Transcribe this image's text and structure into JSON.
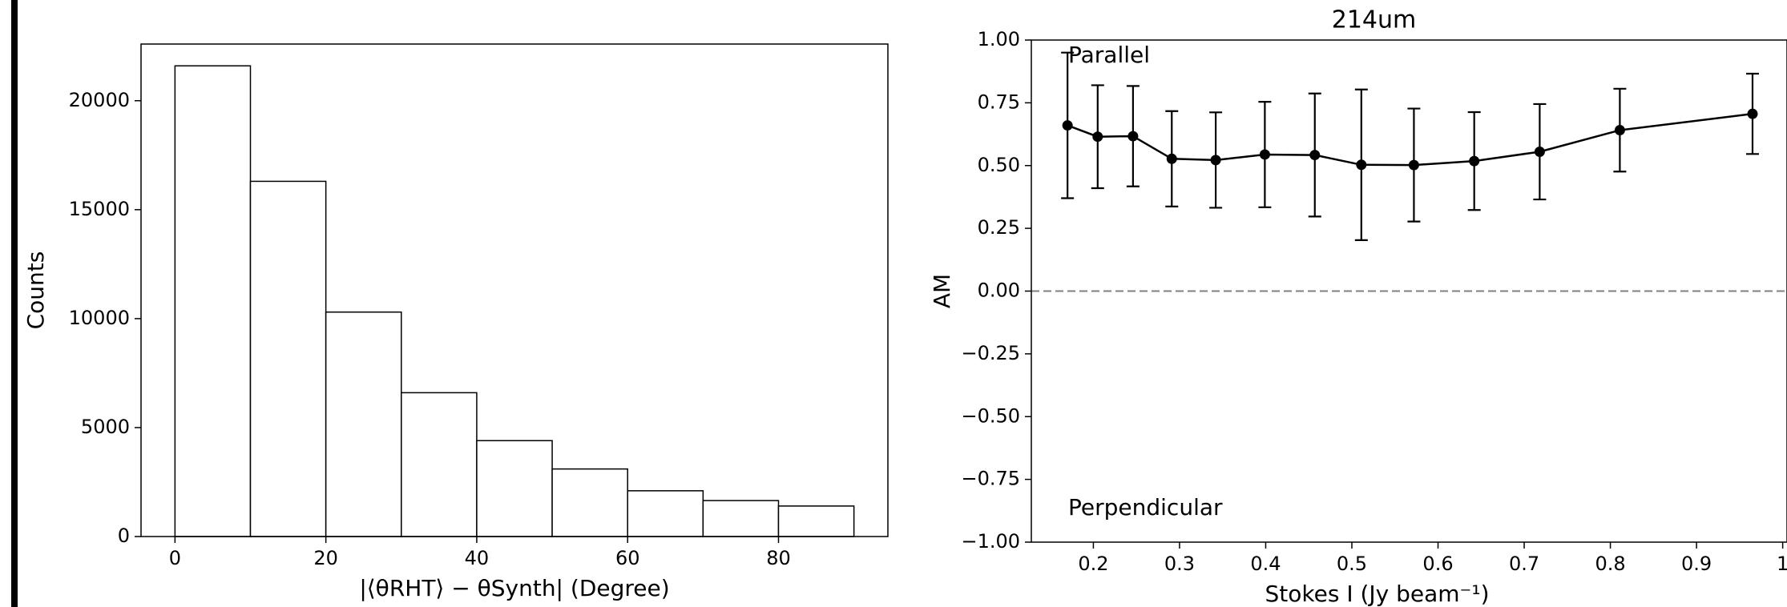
{
  "chart_data": [
    {
      "type": "histogram",
      "xlabel": "|⟨θRHT⟩ − θSynth| (Degree)",
      "ylabel": "Counts",
      "bins": [
        0,
        10,
        20,
        30,
        40,
        50,
        60,
        70,
        80,
        90
      ],
      "values": [
        21600,
        16300,
        10300,
        6600,
        4400,
        3100,
        2100,
        1650,
        1400
      ],
      "color": "#ffffff",
      "edgecolor": "#000000",
      "xlim": [
        -4.5,
        94.5
      ],
      "ylim": [
        0,
        22600
      ],
      "xticks": [
        0,
        20,
        40,
        60,
        80
      ],
      "yticks": [
        0,
        5000,
        10000,
        15000,
        20000
      ]
    },
    {
      "type": "line",
      "title": "214um",
      "xlabel": "Stokes I (Jy beam⁻¹)",
      "ylabel": "AM",
      "x": [
        0.17,
        0.205,
        0.246,
        0.291,
        0.342,
        0.399,
        0.457,
        0.511,
        0.572,
        0.642,
        0.718,
        0.811,
        0.965
      ],
      "values": [
        0.66,
        0.615,
        0.617,
        0.527,
        0.522,
        0.544,
        0.542,
        0.503,
        0.502,
        0.518,
        0.555,
        0.641,
        0.706
      ],
      "errors": [
        0.29,
        0.205,
        0.2,
        0.19,
        0.19,
        0.21,
        0.245,
        0.3,
        0.225,
        0.195,
        0.19,
        0.165,
        0.16
      ],
      "color": "#000000",
      "hline": 0,
      "hline_color": "#808080",
      "annotations": [
        {
          "text": "Parallel",
          "color": "#ff0000"
        },
        {
          "text": "Perpendicular",
          "color": "#ff0000"
        }
      ],
      "xlim": [
        0.128,
        1.005
      ],
      "ylim": [
        -1,
        1
      ],
      "xticks": [
        0.2,
        0.3,
        0.4,
        0.5,
        0.6,
        0.7,
        0.8,
        0.9,
        1
      ],
      "yticks": [
        {
          "value": -1,
          "label": "−1.00"
        },
        {
          "value": -0.75,
          "label": "−0.75"
        },
        {
          "value": -0.5,
          "label": "−0.50"
        },
        {
          "value": -0.25,
          "label": "−0.25"
        },
        {
          "value": 0,
          "label": "0.00"
        },
        {
          "value": 0.25,
          "label": "0.25"
        },
        {
          "value": 0.5,
          "label": "0.50"
        },
        {
          "value": 0.75,
          "label": "0.75"
        },
        {
          "value": 1,
          "label": "1.00"
        }
      ]
    }
  ]
}
